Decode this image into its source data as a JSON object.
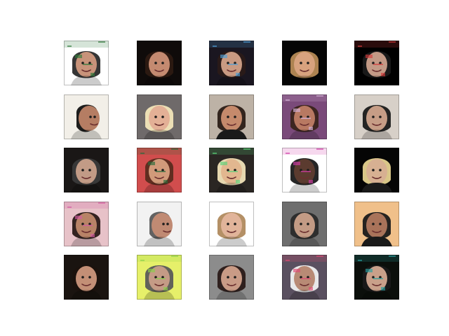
{
  "figure": {
    "rows": 5,
    "cols": 5,
    "background": "#ffffff",
    "samples": [
      {
        "bg": "#ffffff",
        "skin": "#c8937a",
        "hair": "#2a2a2a",
        "noise": "#2f7a3a",
        "style": "glitch"
      },
      {
        "bg": "#0f0b0a",
        "skin": "#c48a70",
        "hair": "#2d1a12",
        "noise": "#000000",
        "style": "dark"
      },
      {
        "bg": "#1a1620",
        "skin": "#c99a82",
        "hair": "#2a1a18",
        "noise": "#4ea0d8",
        "style": "glitch"
      },
      {
        "bg": "#050505",
        "skin": "#d7a27e",
        "hair": "#b68a55",
        "noise": "#000000",
        "style": "dark"
      },
      {
        "bg": "#000000",
        "skin": "#c39a86",
        "hair": "#1a1a1a",
        "noise": "#d23a3a",
        "style": "glitch"
      },
      {
        "bg": "#f2efe8",
        "skin": "#b57d63",
        "hair": "#111111",
        "noise": "#000000",
        "style": "profile"
      },
      {
        "bg": "#6f6a6a",
        "skin": "#e3b096",
        "hair": "#f2e6b9",
        "noise": "#000000",
        "style": "light"
      },
      {
        "bg": "#bdb2a6",
        "skin": "#c58a6c",
        "hair": "#2b1d16",
        "noise": "#000000",
        "style": "suit"
      },
      {
        "bg": "#7a4a7a",
        "skin": "#b87962",
        "hair": "#3a241c",
        "noise": "#d7b4d8",
        "style": "glitch"
      },
      {
        "bg": "#d7d0c8",
        "skin": "#c69d86",
        "hair": "#1a1a1a",
        "noise": "#000000",
        "style": "dark"
      },
      {
        "bg": "#1a1716",
        "skin": "#c29b86",
        "hair": "#3a3a3a",
        "noise": "#000000",
        "style": "dark"
      },
      {
        "bg": "#d14d4d",
        "skin": "#d19a7a",
        "hair": "#5a2b1d",
        "noise": "#2a6a3a",
        "style": "glitch"
      },
      {
        "bg": "#2a2623",
        "skin": "#e2b78f",
        "hair": "#f0e1b8",
        "noise": "#5ad37a",
        "style": "glitch"
      },
      {
        "bg": "#ffffff",
        "skin": "#5b3b2f",
        "hair": "#1a1a1a",
        "noise": "#d33ca8",
        "style": "glitch"
      },
      {
        "bg": "#050505",
        "skin": "#d7b092",
        "hair": "#e5d18f",
        "noise": "#000000",
        "style": "suit"
      },
      {
        "bg": "#e7c2c8",
        "skin": "#b88367",
        "hair": "#2a1a18",
        "noise": "#d45aa2",
        "style": "glitch"
      },
      {
        "bg": "#f2f2f2",
        "skin": "#c08a73",
        "hair": "#5a5a5a",
        "noise": "#2d6bd1",
        "style": "profile"
      },
      {
        "bg": "#ffffff",
        "skin": "#e1b49a",
        "hair": "#b08a5e",
        "noise": "#000000",
        "style": "light"
      },
      {
        "bg": "#6e6e6e",
        "skin": "#c39b85",
        "hair": "#2a2a2a",
        "noise": "#000000",
        "style": "dark"
      },
      {
        "bg": "#f0c08a",
        "skin": "#a9735a",
        "hair": "#1a1a1a",
        "noise": "#000000",
        "style": "suit"
      },
      {
        "bg": "#1a1410",
        "skin": "#c38f76",
        "hair": "#1b120e",
        "noise": "#f2d26a",
        "style": "dark"
      },
      {
        "bg": "#e6f06a",
        "skin": "#c49b86",
        "hair": "#5a5a5a",
        "noise": "#8ad04a",
        "style": "glitch"
      },
      {
        "bg": "#8c8c8c",
        "skin": "#c99b86",
        "hair": "#2a1a18",
        "noise": "#000000",
        "style": "dark"
      },
      {
        "bg": "#5a5060",
        "skin": "#b88a75",
        "hair": "#f0f0f0",
        "noise": "#e14a74",
        "style": "glitch"
      },
      {
        "bg": "#0b0f0b",
        "skin": "#c9a08a",
        "hair": "#1a1a1a",
        "noise": "#2aa0a0",
        "style": "glitch"
      }
    ]
  }
}
